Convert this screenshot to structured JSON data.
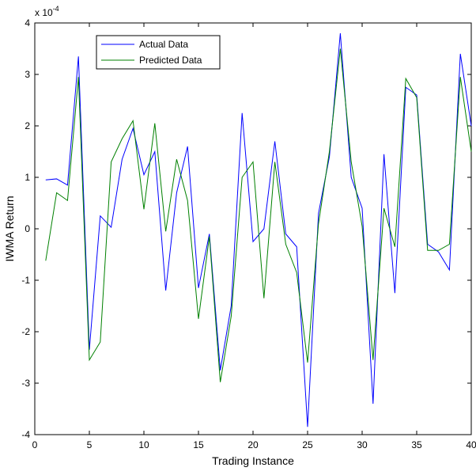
{
  "chart_data": {
    "type": "line",
    "x_label": "Trading Instance",
    "y_label": "IWMA Return",
    "axis_multiplier": {
      "base": "x 10",
      "exponent": "-4"
    },
    "x": [
      1,
      2,
      3,
      4,
      5,
      6,
      7,
      8,
      9,
      10,
      11,
      12,
      13,
      14,
      15,
      16,
      17,
      18,
      19,
      20,
      21,
      22,
      23,
      24,
      25,
      26,
      27,
      28,
      29,
      30,
      31,
      32,
      33,
      34,
      35,
      36,
      37,
      38,
      39,
      40
    ],
    "series": [
      {
        "name": "Actual Data",
        "color": "#0000ff",
        "values": [
          0.95,
          0.97,
          0.85,
          3.35,
          -2.35,
          0.25,
          0.03,
          1.35,
          1.95,
          1.05,
          1.5,
          -1.2,
          0.7,
          1.6,
          -1.15,
          -0.1,
          -2.75,
          -1.5,
          2.25,
          -0.25,
          0,
          1.7,
          -0.1,
          -0.35,
          -3.85,
          0.3,
          1.4,
          3.8,
          1.0,
          0.4,
          -3.4,
          1.45,
          -1.25,
          2.75,
          2.6,
          -0.3,
          -0.45,
          -0.8,
          3.4,
          2.0
        ]
      },
      {
        "name": "Predicted Data",
        "color": "#008000",
        "values": [
          -0.62,
          0.7,
          0.55,
          2.95,
          -2.55,
          -2.2,
          1.3,
          1.75,
          2.1,
          0.38,
          2.05,
          -0.05,
          1.35,
          0.55,
          -1.75,
          -0.15,
          -2.98,
          -1.7,
          1.0,
          1.3,
          -1.35,
          1.3,
          -0.3,
          -0.85,
          -2.6,
          0.1,
          1.5,
          3.5,
          1.3,
          0.05,
          -2.55,
          0.4,
          -0.35,
          2.92,
          2.55,
          -0.42,
          -0.42,
          -0.3,
          2.95,
          1.5
        ]
      }
    ],
    "xlim": [
      0,
      40
    ],
    "xticks": [
      0,
      5,
      10,
      15,
      20,
      25,
      30,
      35,
      40
    ],
    "ylim": [
      -4,
      4
    ],
    "yticks": [
      -4,
      -3,
      -2,
      -1,
      0,
      1,
      2,
      3,
      4
    ],
    "legend": "upper-left"
  }
}
